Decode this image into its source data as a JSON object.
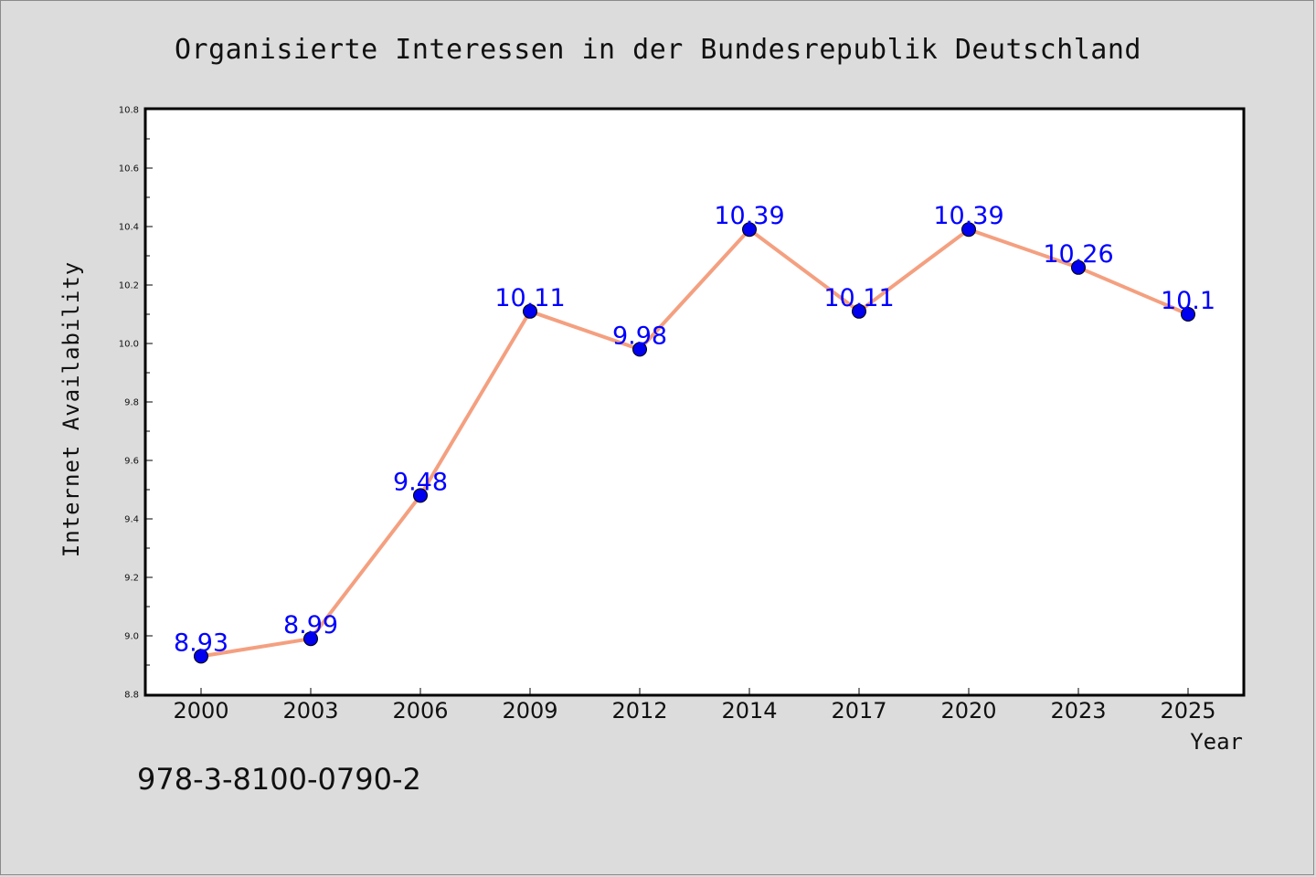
{
  "chart_data": {
    "type": "line",
    "title": "Organisierte Interessen in der Bundesrepublik Deutschland",
    "xlabel": "Year",
    "ylabel": "Internet Availability",
    "categories": [
      "2000",
      "2003",
      "2006",
      "2009",
      "2012",
      "2014",
      "2017",
      "2020",
      "2023",
      "2025"
    ],
    "values": [
      8.93,
      8.99,
      9.48,
      10.11,
      9.98,
      10.39,
      10.11,
      10.39,
      10.26,
      10.1
    ],
    "data_labels": [
      "8.93",
      "8.99",
      "9.48",
      "10.11",
      "9.98",
      "10.39",
      "10.11",
      "10.39",
      "10.26",
      "10.1"
    ],
    "ylim": [
      8.8,
      10.8
    ],
    "yticks": [
      "8.8",
      "9.0",
      "9.2",
      "9.4",
      "9.6",
      "9.8",
      "10.0",
      "10.2",
      "10.4",
      "10.6",
      "10.8"
    ],
    "grid": false,
    "legend": "none",
    "line_color": "#f4a080",
    "marker_color": "#0000ee",
    "label_color": "#0000ff",
    "background": "#dcdcdc",
    "plot_background": "#ffffff"
  },
  "footer": {
    "isbn": "978-3-8100-0790-2"
  }
}
